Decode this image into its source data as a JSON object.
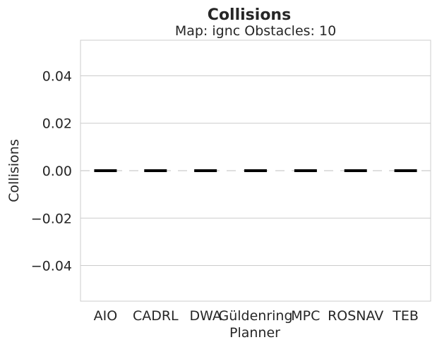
{
  "chart_data": {
    "type": "box",
    "title": "Collisions",
    "subtitle": "Map: ignc Obstacles: 10",
    "xlabel": "Planner",
    "ylabel": "Collisions",
    "categories": [
      "AIO",
      "CADRL",
      "DWA",
      "Güldenring",
      "MPC",
      "ROSNAV",
      "TEB"
    ],
    "values": [
      0,
      0,
      0,
      0,
      0,
      0,
      0
    ],
    "ylim": [
      -0.055,
      0.055
    ],
    "yticks": [
      0.04,
      0.02,
      0.0,
      -0.02,
      -0.04
    ],
    "ytick_labels": [
      "0.04",
      "0.02",
      "0.00",
      "−0.02",
      "−0.04"
    ],
    "grid": true,
    "reference_line": 0,
    "colors": {
      "median": "#000000",
      "grid": "#cccccc",
      "spine": "#cccccc",
      "reference": "#cccccc",
      "text": "#262626"
    }
  }
}
